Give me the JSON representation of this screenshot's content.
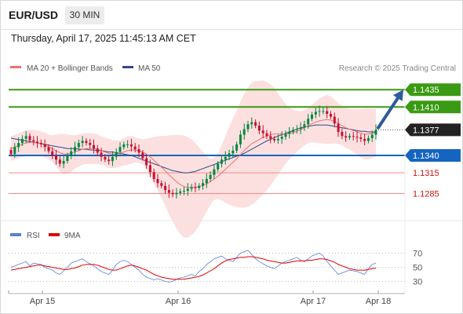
{
  "header": {
    "symbol": "EUR/USD",
    "timeframe": "30 MIN",
    "datetime": "Thursday, April 17, 2025 11:45:13 AM CET"
  },
  "legend": {
    "ma20": "MA 20 + Bollinger Bands",
    "ma50": "MA 50",
    "credit": "Research © 2025 Trading Central"
  },
  "colors": {
    "up": "#00873c",
    "down": "#c8102e",
    "ma20": "#f07070",
    "ma50": "#2b4a8c",
    "band": "#fbd6d6",
    "green_level": "#3a9a13",
    "blue_level": "#1565c0",
    "red_level": "#f58a8a",
    "rsi": "#5b7ed8",
    "rsi_ma": "#e00000"
  },
  "chart_data": [
    {
      "type": "candlestick",
      "title": "EUR/USD 30 MIN",
      "ylim": [
        1.1255,
        1.145
      ],
      "x_ticks": [
        "Apr 15",
        "Apr 16",
        "Apr 17",
        "Apr 18"
      ],
      "grid": false,
      "legend_position": "top-left",
      "last_price": "1.1377",
      "levels": [
        {
          "label": "1.1435",
          "value": 1.1435,
          "kind": "resistance",
          "style": "green"
        },
        {
          "label": "1.1410",
          "value": 1.141,
          "kind": "resistance",
          "style": "green"
        },
        {
          "label": "1.1340",
          "value": 1.134,
          "kind": "pivot",
          "style": "blue"
        },
        {
          "label": "1.1315",
          "value": 1.1315,
          "kind": "support",
          "style": "red"
        },
        {
          "label": "1.1285",
          "value": 1.1285,
          "kind": "support",
          "style": "red"
        }
      ],
      "target_arrow": {
        "from": 1.138,
        "to": 1.1435
      },
      "closes": [
        1.1342,
        1.1352,
        1.1358,
        1.1364,
        1.1368,
        1.1362,
        1.136,
        1.1358,
        1.1356,
        1.1352,
        1.1346,
        1.134,
        1.1334,
        1.1328,
        1.1332,
        1.134,
        1.1346,
        1.1352,
        1.1358,
        1.1361,
        1.1358,
        1.1355,
        1.135,
        1.1344,
        1.1338,
        1.1334,
        1.1332,
        1.1338,
        1.1345,
        1.1352,
        1.1356,
        1.1356,
        1.1353,
        1.1349,
        1.1344,
        1.1336,
        1.1326,
        1.1316,
        1.1306,
        1.13,
        1.1296,
        1.129,
        1.1286,
        1.1284,
        1.1286,
        1.1288,
        1.1289,
        1.1292,
        1.1294,
        1.1293,
        1.1296,
        1.13,
        1.1306,
        1.1312,
        1.132,
        1.1328,
        1.1334,
        1.1338,
        1.1343,
        1.1347,
        1.1356,
        1.137,
        1.1378,
        1.1385,
        1.1388,
        1.1383,
        1.1376,
        1.1372,
        1.1368,
        1.1364,
        1.1362,
        1.1364,
        1.1367,
        1.1371,
        1.1374,
        1.1377,
        1.1378,
        1.138,
        1.1385,
        1.1393,
        1.1399,
        1.1403,
        1.1404,
        1.1404,
        1.14,
        1.1396,
        1.1386,
        1.1374,
        1.1368,
        1.1366,
        1.1368,
        1.1367,
        1.1366,
        1.1364,
        1.1361,
        1.1365,
        1.137,
        1.1377
      ],
      "ma20": [
        1.135,
        1.1352,
        1.1354,
        1.1356,
        1.1358,
        1.1359,
        1.1359,
        1.1358,
        1.1357,
        1.1355,
        1.1352,
        1.135,
        1.1347,
        1.1344,
        1.1342,
        1.1342,
        1.1343,
        1.1345,
        1.1347,
        1.1349,
        1.135,
        1.135,
        1.135,
        1.1349,
        1.1347,
        1.1345,
        1.1343,
        1.1342,
        1.1342,
        1.1343,
        1.1345,
        1.1347,
        1.1348,
        1.1348,
        1.1347,
        1.1345,
        1.1342,
        1.1338,
        1.1333,
        1.1328,
        1.1323,
        1.1318,
        1.1312,
        1.1307,
        1.1302,
        1.1298,
        1.1295,
        1.1294,
        1.1294,
        1.1294,
        1.1295,
        1.1297,
        1.1299,
        1.1302,
        1.1306,
        1.131,
        1.1315,
        1.132,
        1.1325,
        1.133,
        1.1335,
        1.1341,
        1.1347,
        1.1352,
        1.1357,
        1.136,
        1.1363,
        1.1366,
        1.1368,
        1.137,
        1.1371,
        1.1371,
        1.1371,
        1.1371,
        1.1372,
        1.1373,
        1.1375,
        1.1377,
        1.138,
        1.1383,
        1.1386,
        1.1388,
        1.139,
        1.1391,
        1.1392,
        1.1391,
        1.1389,
        1.1386,
        1.1383,
        1.138,
        1.1378,
        1.1376,
        1.1374,
        1.1372,
        1.1371,
        1.1371,
        1.1372,
        1.1373
      ],
      "ma50": [
        1.1365,
        1.1364,
        1.1363,
        1.1362,
        1.1361,
        1.136,
        1.1359,
        1.1358,
        1.1357,
        1.1356,
        1.1355,
        1.1354,
        1.1353,
        1.1352,
        1.1351,
        1.135,
        1.135,
        1.135,
        1.1349,
        1.1349,
        1.1349,
        1.1348,
        1.1348,
        1.1347,
        1.1347,
        1.1346,
        1.1345,
        1.1345,
        1.1344,
        1.1343,
        1.1342,
        1.1341,
        1.134,
        1.1338,
        1.1336,
        1.1334,
        1.1332,
        1.133,
        1.1328,
        1.1326,
        1.1324,
        1.1322,
        1.132,
        1.1318,
        1.1317,
        1.1316,
        1.1315,
        1.1315,
        1.1316,
        1.1317,
        1.1319,
        1.1321,
        1.1323,
        1.1325,
        1.1327,
        1.1329,
        1.1331,
        1.1333,
        1.1335,
        1.1337,
        1.1339,
        1.1341,
        1.1343,
        1.1346,
        1.1349,
        1.1352,
        1.1355,
        1.1358,
        1.1361,
        1.1363,
        1.1366,
        1.1368,
        1.137,
        1.1372,
        1.1374,
        1.1376,
        1.1378,
        1.138,
        1.1381,
        1.1382,
        1.1383,
        1.1384,
        1.1384,
        1.1384,
        1.1384,
        1.1383,
        1.1382,
        1.1381,
        1.138,
        1.1379,
        1.1378,
        1.1377,
        1.1376,
        1.1375,
        1.1375,
        1.1374,
        1.1374,
        1.1374
      ]
    },
    {
      "type": "line",
      "title": "RSI",
      "ylim": [
        25,
        75
      ],
      "y_ticks": [
        "70",
        "50",
        "30"
      ],
      "series": [
        {
          "name": "RSI",
          "values": [
            50,
            52,
            54,
            56,
            58,
            52,
            56,
            55,
            54,
            50,
            48,
            46,
            42,
            40,
            45,
            50,
            56,
            58,
            60,
            62,
            58,
            55,
            52,
            48,
            44,
            42,
            40,
            46,
            54,
            58,
            60,
            58,
            54,
            50,
            46,
            40,
            36,
            34,
            32,
            34,
            32,
            30,
            29,
            30,
            33,
            35,
            36,
            38,
            40,
            38,
            44,
            48,
            54,
            58,
            62,
            64,
            66,
            62,
            60,
            58,
            64,
            70,
            72,
            74,
            68,
            62,
            58,
            55,
            52,
            50,
            48,
            52,
            56,
            58,
            60,
            62,
            64,
            60,
            58,
            62,
            66,
            68,
            70,
            66,
            58,
            52,
            46,
            40,
            42,
            44,
            46,
            45,
            44,
            42,
            40,
            48,
            54,
            56
          ]
        },
        {
          "name": "9MA",
          "values": [
            46,
            47,
            48,
            49,
            50,
            51,
            52,
            53,
            53,
            52,
            51,
            50,
            49,
            48,
            47,
            47,
            48,
            49,
            51,
            53,
            54,
            54,
            54,
            53,
            51,
            49,
            47,
            46,
            46,
            48,
            50,
            52,
            53,
            52,
            50,
            48,
            46,
            43,
            40,
            38,
            36,
            35,
            34,
            33,
            33,
            33,
            33,
            34,
            35,
            36,
            37,
            39,
            42,
            45,
            48,
            52,
            56,
            59,
            61,
            62,
            63,
            64,
            64,
            65,
            65,
            64,
            63,
            62,
            60,
            59,
            58,
            57,
            56,
            56,
            57,
            58,
            59,
            59,
            59,
            60,
            60,
            61,
            62,
            62,
            61,
            59,
            57,
            54,
            52,
            50,
            48,
            47,
            46,
            46,
            46,
            47,
            48,
            49
          ]
        }
      ]
    }
  ]
}
